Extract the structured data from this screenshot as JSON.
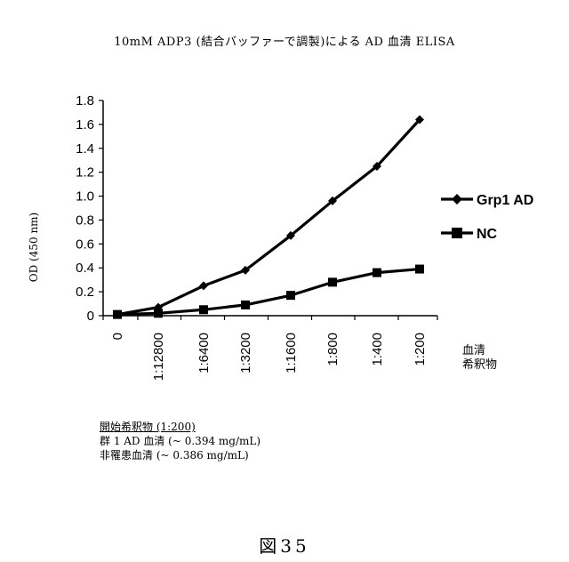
{
  "chart_data": {
    "type": "line",
    "title": "10mM ADP3 (結合バッファーで調製)による AD 血清 ELISA",
    "ylabel": "OD (450 nm)",
    "xlabel": "血清希釈物",
    "categories": [
      "0",
      "1:12800",
      "1:6400",
      "1:3200",
      "1:1600",
      "1:800",
      "1:400",
      "1:200"
    ],
    "ylim": [
      0,
      1.8
    ],
    "yticks": [
      "0",
      "0.2",
      "0.4",
      "0.6",
      "0.8",
      "1.0",
      "1.2",
      "1.4",
      "1.6",
      "1.8"
    ],
    "legend_position": "right",
    "series": [
      {
        "name": "Grp1 AD",
        "marker": "diamond",
        "color": "#000000",
        "values": [
          0.01,
          0.07,
          0.25,
          0.38,
          0.67,
          0.96,
          1.25,
          1.64
        ]
      },
      {
        "name": "NC",
        "marker": "square",
        "color": "#000000",
        "values": [
          0.01,
          0.02,
          0.05,
          0.09,
          0.17,
          0.28,
          0.36,
          0.39
        ]
      }
    ]
  },
  "notes": {
    "heading": "開始希釈物 (1:200)",
    "line1": "群 1 AD 血清 (~ 0.394 mg/mL)",
    "line2": "非罹患血清 (~ 0.386 mg/mL)"
  },
  "figure_label": "図35"
}
